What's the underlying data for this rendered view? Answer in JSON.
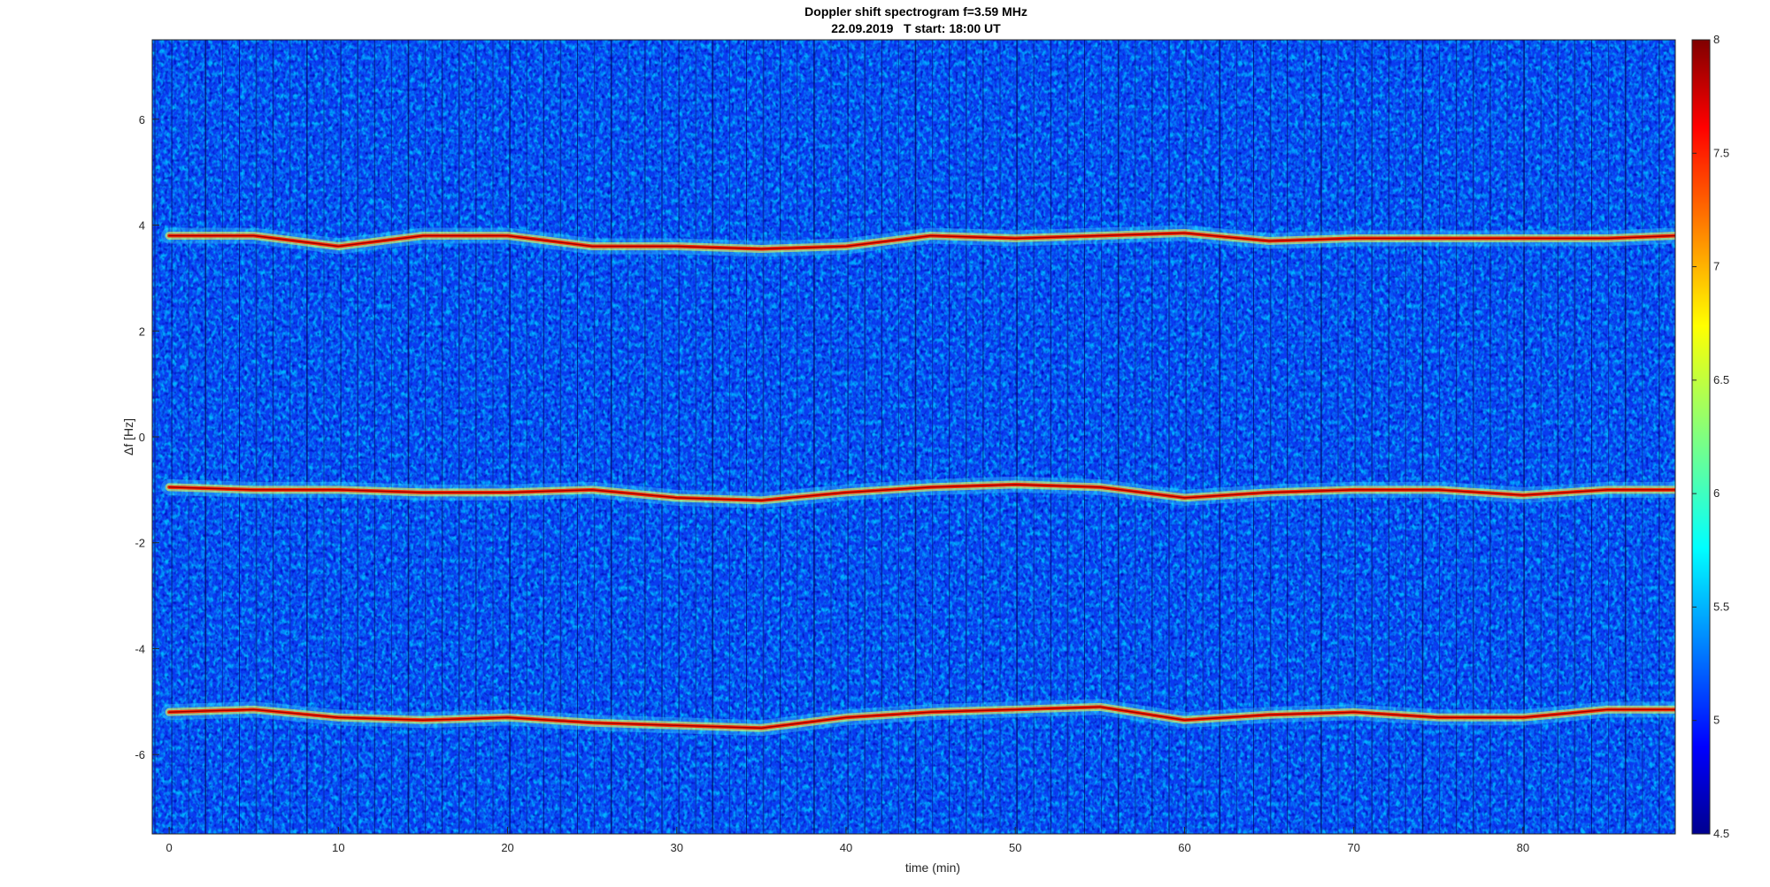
{
  "chart_data": {
    "type": "heatmap",
    "title": "Doppler shift spectrogram f=3.59 MHz",
    "subtitle": "22.09.2019   T start: 18:00 UT",
    "xlabel": "time (min)",
    "ylabel": "Δf [Hz]",
    "xlim": [
      -1,
      89
    ],
    "ylim": [
      -7.5,
      7.5
    ],
    "x_ticks": [
      0,
      10,
      20,
      30,
      40,
      50,
      60,
      70,
      80
    ],
    "y_ticks": [
      -6,
      -4,
      -2,
      0,
      2,
      4,
      6
    ],
    "colorbar": {
      "colormap": "jet",
      "range": [
        4.5,
        8
      ],
      "ticks": [
        4.5,
        5,
        5.5,
        6,
        6.5,
        7,
        7.5,
        8
      ]
    },
    "series": [
      {
        "x": [
          0,
          5,
          10,
          15,
          20,
          25,
          30,
          35,
          40,
          45,
          50,
          55,
          60,
          65,
          70,
          75,
          80,
          85,
          89
        ],
        "values": [
          3.8,
          3.8,
          3.6,
          3.8,
          3.8,
          3.6,
          3.6,
          3.55,
          3.6,
          3.8,
          3.75,
          3.8,
          3.85,
          3.7,
          3.75,
          3.75,
          3.75,
          3.75,
          3.8
        ]
      },
      {
        "x": [
          0,
          5,
          10,
          15,
          20,
          25,
          30,
          35,
          40,
          45,
          50,
          55,
          60,
          65,
          70,
          75,
          80,
          85,
          89
        ],
        "values": [
          -0.95,
          -1.0,
          -1.0,
          -1.05,
          -1.05,
          -1.0,
          -1.15,
          -1.2,
          -1.05,
          -0.95,
          -0.9,
          -0.95,
          -1.15,
          -1.05,
          -1.0,
          -1.0,
          -1.1,
          -1.0,
          -1.0
        ]
      },
      {
        "x": [
          0,
          5,
          10,
          15,
          20,
          25,
          30,
          35,
          40,
          45,
          50,
          55,
          60,
          65,
          70,
          75,
          80,
          85,
          89
        ],
        "values": [
          -5.2,
          -5.15,
          -5.3,
          -5.35,
          -5.3,
          -5.4,
          -5.45,
          -5.5,
          -5.3,
          -5.2,
          -5.15,
          -5.1,
          -5.35,
          -5.25,
          -5.2,
          -5.3,
          -5.3,
          -5.15,
          -5.15
        ]
      }
    ]
  },
  "colors": {
    "background": "#ffffff",
    "plot_frame": "#262626"
  }
}
